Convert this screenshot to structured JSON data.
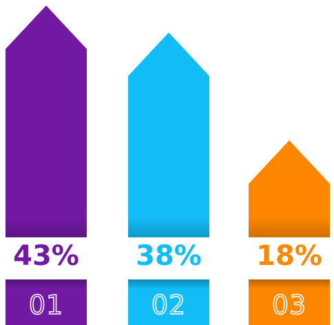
{
  "chart_data": {
    "type": "bar",
    "categories": [
      "01",
      "02",
      "03"
    ],
    "values": [
      43,
      38,
      18
    ],
    "value_labels": [
      "43%",
      "38%",
      "18%"
    ],
    "value_unit": "%",
    "ylim": [
      0,
      43
    ],
    "grid": false,
    "legend": "none",
    "colors": [
      "#7219a4",
      "#12bdf6",
      "#ff8700"
    ]
  }
}
